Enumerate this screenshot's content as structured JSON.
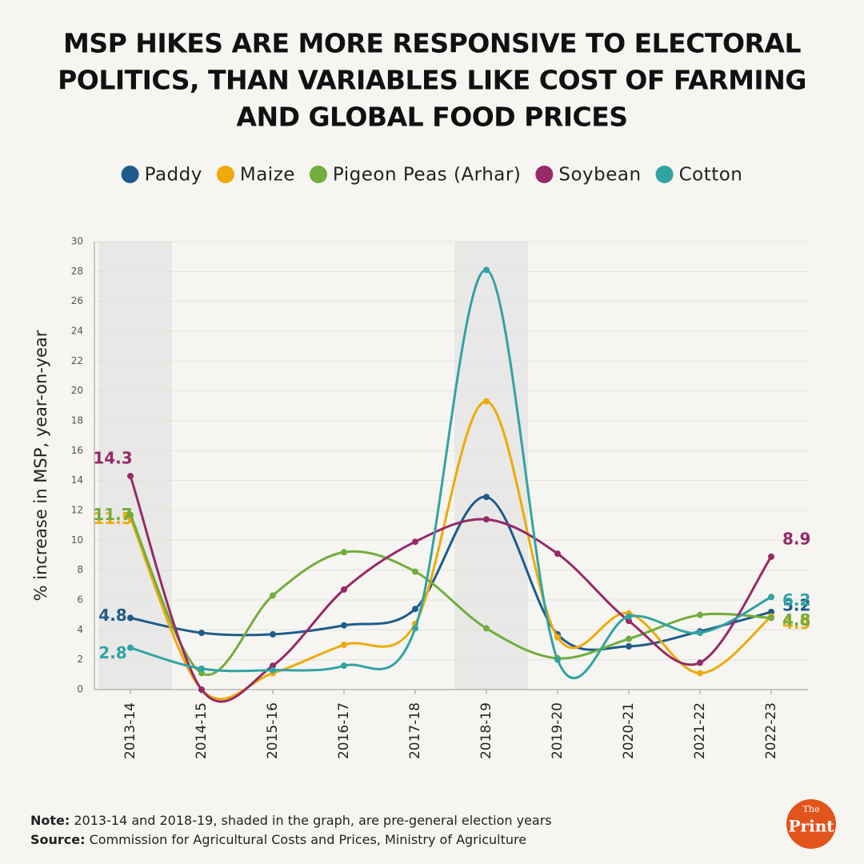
{
  "chart_data": {
    "type": "line",
    "title": [
      "MSP HIKES ARE MORE RESPONSIVE TO ELECTORAL",
      "POLITICS, THAN VARIABLES LIKE COST OF FARMING",
      "AND GLOBAL FOOD PRICES"
    ],
    "y_label": "% increase in MSP, year-on-year",
    "categories": [
      "2013-14",
      "2014-15",
      "2015-16",
      "2016-17",
      "2017-18",
      "2018-19",
      "2019-20",
      "2020-21",
      "2021-22",
      "2022-23"
    ],
    "shaded_indices": [
      0,
      5
    ],
    "series": [
      {
        "name": "Paddy",
        "color": "#1f5c8b",
        "values": [
          4.8,
          3.8,
          3.7,
          4.3,
          5.4,
          12.9,
          3.7,
          2.9,
          3.9,
          5.2
        ]
      },
      {
        "name": "Maize",
        "color": "#eeaa0b",
        "values": [
          11.5,
          0,
          1.1,
          3.0,
          4.4,
          19.3,
          3.5,
          5.1,
          1.1,
          4.9
        ]
      },
      {
        "name": "Pigeon Peas (Arhar)",
        "color": "#72ad3d",
        "values": [
          11.7,
          1.1,
          6.3,
          9.2,
          7.9,
          4.1,
          2.1,
          3.4,
          5.0,
          4.8
        ]
      },
      {
        "name": "Soybean",
        "color": "#962a68",
        "values": [
          14.3,
          0,
          1.6,
          6.7,
          9.9,
          11.4,
          9.1,
          4.6,
          1.8,
          8.9
        ]
      },
      {
        "name": "Cotton",
        "color": "#32a3a3",
        "values": [
          2.8,
          1.4,
          1.3,
          1.6,
          4.1,
          28.1,
          2.0,
          4.9,
          3.8,
          6.2
        ]
      }
    ],
    "ylim": [
      0,
      30
    ],
    "yticks": [
      0,
      2,
      4,
      6,
      8,
      10,
      12,
      14,
      16,
      18,
      20,
      22,
      24,
      26,
      28,
      30
    ],
    "grid": true,
    "legend": "top",
    "note": {
      "label": "Note:",
      "text": "2013-14 and 2018-19, shaded in the graph, are pre-general election years"
    },
    "source": {
      "label": "Source:",
      "text": "Commission for Agricultural Costs and Prices, Ministry of Agriculture"
    },
    "logo": [
      "The",
      "Print"
    ]
  }
}
